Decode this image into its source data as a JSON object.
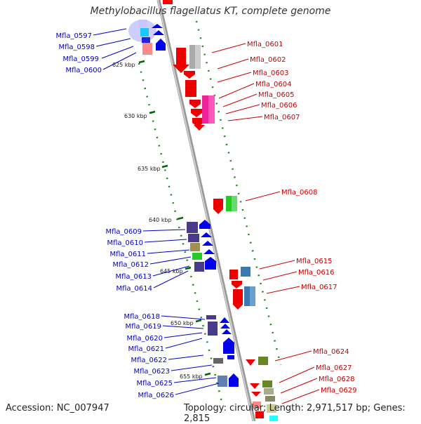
{
  "title": "Methylobacillus flagellatus KT, complete genome",
  "footer": {
    "accession": "Accession: NC_007947",
    "topology": "Topology: circular; Length: 2,971,517 bp; Genes: 2,815"
  },
  "colors": {
    "left_label": "#0000cc",
    "right_label": "#cc0000",
    "scale_tick": "#006600",
    "backbone": "#999999"
  },
  "scale_labels": [
    "625 kbp",
    "630 kbp",
    "635 kbp",
    "640 kbp",
    "645 kbp",
    "650 kbp",
    "655 kbp"
  ],
  "left_genes": [
    "Mfla_0597",
    "Mfla_0598",
    "Mfla_0599",
    "Mfla_0600",
    "Mfla_0609",
    "Mfla_0610",
    "Mfla_0611",
    "Mfla_0612",
    "Mfla_0613",
    "Mfla_0614",
    "Mfla_0618",
    "Mfla_0619",
    "Mfla_0620",
    "Mfla_0621",
    "Mfla_0622",
    "Mfla_0623",
    "Mfla_0625",
    "Mfla_0626"
  ],
  "right_genes": [
    "Mfla_0601",
    "Mfla_0602",
    "Mfla_0603",
    "Mfla_0604",
    "Mfla_0605",
    "Mfla_0606",
    "Mfla_0607",
    "Mfla_0608",
    "Mfla_0615",
    "Mfla_0616",
    "Mfla_0617",
    "Mfla_0624",
    "Mfla_0627",
    "Mfla_0628",
    "Mfla_0629"
  ]
}
